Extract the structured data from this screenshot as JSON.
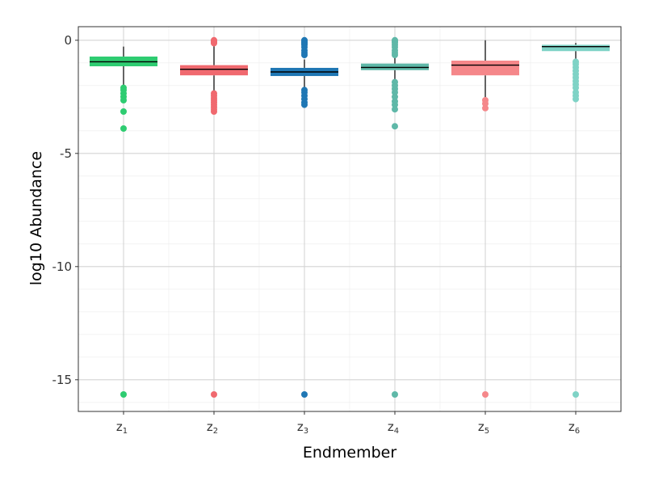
{
  "chart_data": {
    "type": "boxplot",
    "xlabel": "Endmember",
    "ylabel": "log10 Abundance",
    "ylim": [
      -16.4,
      0.6
    ],
    "y_ticks": [
      0,
      -5,
      -10,
      -15
    ],
    "y_tick_labels": [
      "0",
      "-5",
      "-10",
      "-15"
    ],
    "grid": true,
    "legend": "none",
    "series": [
      {
        "label": "z",
        "sub": "1",
        "color": "#2ecc71",
        "whisker_low": -2.0,
        "q1": -1.15,
        "median": -0.95,
        "q3": -0.72,
        "whisker_high": -0.28,
        "outliers": [
          -2.1,
          -2.2,
          -2.35,
          -2.5,
          -2.65,
          -3.15,
          -3.9,
          -15.65
        ]
      },
      {
        "label": "z",
        "sub": "2",
        "color": "#f0696f",
        "whisker_low": -2.25,
        "q1": -1.55,
        "median": -1.28,
        "q3": -1.1,
        "whisker_high": -0.2,
        "outliers": [
          0.0,
          -0.03,
          -0.06,
          -0.1,
          -0.13,
          -2.35,
          -2.45,
          -2.55,
          -2.65,
          -2.75,
          -2.85,
          -2.95,
          -3.05,
          -3.15,
          -15.65
        ]
      },
      {
        "label": "z",
        "sub": "3",
        "color": "#1f77b4",
        "whisker_low": -2.1,
        "q1": -1.58,
        "median": -1.4,
        "q3": -1.22,
        "whisker_high": -0.85,
        "outliers": [
          0.0,
          -0.05,
          -0.1,
          -0.15,
          -0.2,
          -0.3,
          -0.45,
          -0.55,
          -0.65,
          -2.2,
          -2.3,
          -2.45,
          -2.6,
          -2.75,
          -2.85,
          -15.65
        ]
      },
      {
        "label": "z",
        "sub": "4",
        "color": "#5fb8a8",
        "whisker_low": -1.75,
        "q1": -1.32,
        "median": -1.2,
        "q3": -1.03,
        "whisker_high": -0.7,
        "outliers": [
          0.0,
          -0.05,
          -0.1,
          -0.2,
          -0.3,
          -0.45,
          -0.55,
          -0.65,
          -1.85,
          -2.0,
          -2.15,
          -2.3,
          -2.5,
          -2.7,
          -2.85,
          -3.05,
          -3.8,
          -15.65
        ]
      },
      {
        "label": "z",
        "sub": "5",
        "color": "#f5878a",
        "whisker_low": -2.55,
        "q1": -1.55,
        "median": -1.1,
        "q3": -0.9,
        "whisker_high": 0.0,
        "outliers": [
          -2.65,
          -2.8,
          -3.0,
          -15.65
        ]
      },
      {
        "label": "z",
        "sub": "6",
        "color": "#7fd3c6",
        "whisker_low": -0.9,
        "q1": -0.48,
        "median": -0.28,
        "q3": -0.2,
        "whisker_high": -0.12,
        "outliers": [
          -0.95,
          -1.05,
          -1.2,
          -1.35,
          -1.5,
          -1.65,
          -1.8,
          -1.95,
          -2.1,
          -2.3,
          -2.45,
          -2.6,
          -15.65
        ]
      }
    ]
  }
}
